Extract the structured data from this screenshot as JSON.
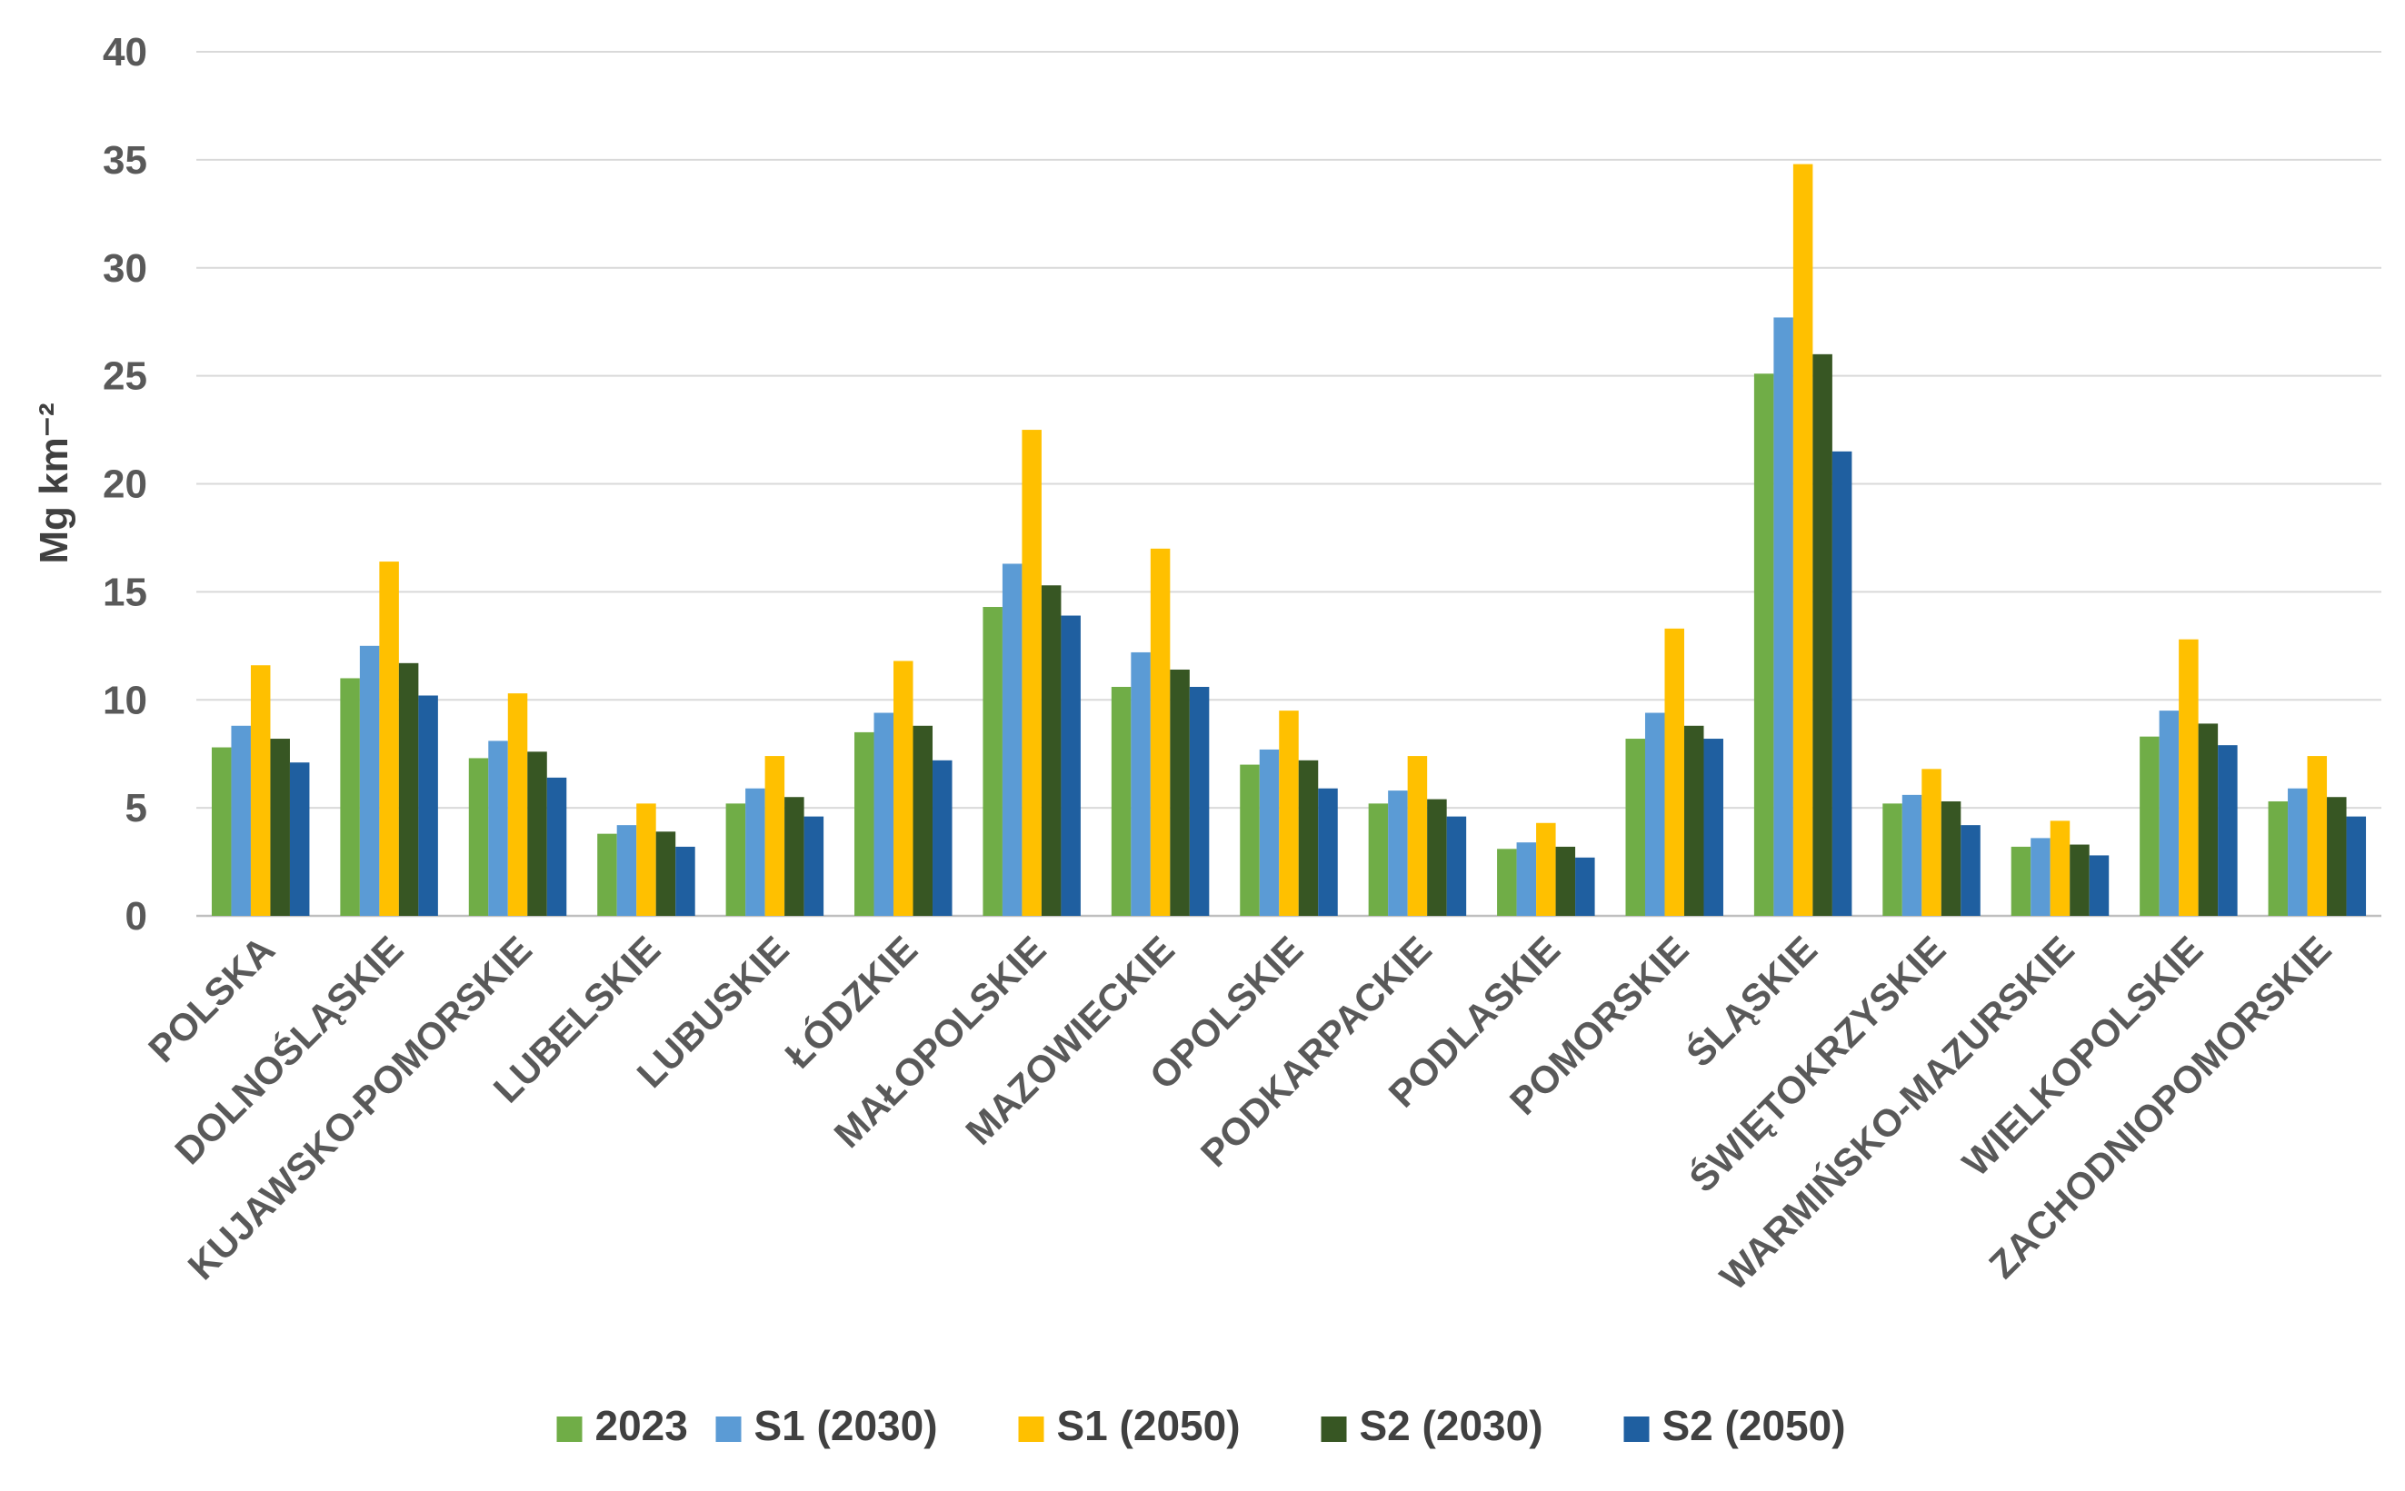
{
  "chart_data": {
    "type": "bar",
    "title": "",
    "xlabel": "",
    "ylabel": "Mg km⁻²",
    "ylim": [
      0,
      40
    ],
    "yticks": [
      0,
      5,
      10,
      15,
      20,
      25,
      30,
      35,
      40
    ],
    "grid": true,
    "legend_position": "bottom",
    "categories": [
      "POLSKA",
      "DOLNOŚLĄSKIE",
      "KUJAWSKO-POMORSKIE",
      "LUBELSKIE",
      "LUBUSKIE",
      "ŁÓDZKIE",
      "MAŁOPOLSKIE",
      "MAZOWIECKIE",
      "OPOLSKIE",
      "PODKARPACKIE",
      "PODLASKIE",
      "POMORSKIE",
      "ŚLĄSKIE",
      "ŚWIĘTOKRZYSKIE",
      "WARMIŃSKO-MAZURSKIE",
      "WIELKOPOLSKIE",
      "ZACHODNIOPOMORSKIE"
    ],
    "series": [
      {
        "name": "2023",
        "color": "#70ad47",
        "values": [
          7.8,
          11.0,
          7.3,
          3.8,
          5.2,
          8.5,
          14.3,
          10.6,
          7.0,
          5.2,
          3.1,
          8.2,
          25.1,
          5.2,
          3.2,
          8.3,
          5.3
        ]
      },
      {
        "name": "S1 (2030)",
        "color": "#5b9bd5",
        "values": [
          8.8,
          12.5,
          8.1,
          4.2,
          5.9,
          9.4,
          16.3,
          12.2,
          7.7,
          5.8,
          3.4,
          9.4,
          27.7,
          5.6,
          3.6,
          9.5,
          5.9
        ]
      },
      {
        "name": "S1 (2050)",
        "color": "#ffc000",
        "values": [
          11.6,
          16.4,
          10.3,
          5.2,
          7.4,
          11.8,
          22.5,
          17.0,
          9.5,
          7.4,
          4.3,
          13.3,
          34.8,
          6.8,
          4.4,
          12.8,
          7.4
        ]
      },
      {
        "name": "S2 (2030)",
        "color": "#375623",
        "values": [
          8.2,
          11.7,
          7.6,
          3.9,
          5.5,
          8.8,
          15.3,
          11.4,
          7.2,
          5.4,
          3.2,
          8.8,
          26.0,
          5.3,
          3.3,
          8.9,
          5.5
        ]
      },
      {
        "name": "S2 (2050)",
        "color": "#1f5fa0",
        "values": [
          7.1,
          10.2,
          6.4,
          3.2,
          4.6,
          7.2,
          13.9,
          10.6,
          5.9,
          4.6,
          2.7,
          8.2,
          21.5,
          4.2,
          2.8,
          7.9,
          4.6
        ]
      }
    ]
  }
}
